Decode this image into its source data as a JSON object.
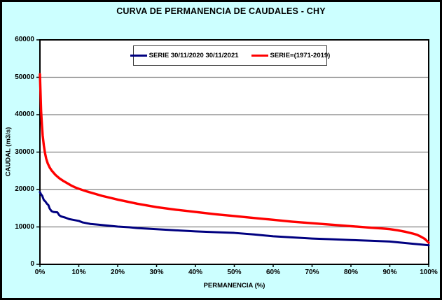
{
  "window": {
    "title": "CURVA DE PERMANENCIA DE CAUDALES - CHY"
  },
  "chart_data": {
    "type": "line",
    "title": "CURVA DE PERMANENCIA DE CAUDALES - CHY",
    "xlabel": "PERMANENCIA (%)",
    "ylabel": "CAUDAL (m3/s)",
    "xlim": [
      0,
      100
    ],
    "ylim": [
      0,
      60000
    ],
    "grid": "horizontal",
    "legend_position": "top-center-inside",
    "background_color": "#CCFFFF",
    "plot_background": "#FFFFFF",
    "gridline_color": "#808080",
    "axis_color": "#000000",
    "xtick_labels": [
      "0%",
      "10%",
      "20%",
      "30%",
      "40%",
      "50%",
      "60%",
      "70%",
      "80%",
      "90%",
      "100%"
    ],
    "ytick_labels": [
      "0",
      "10000",
      "20000",
      "30000",
      "40000",
      "50000",
      "60000"
    ],
    "series": [
      {
        "name": "SERIE 30/11/2020 30/11/2021",
        "color": "#000080",
        "x": [
          0,
          0.3,
          0.6,
          1,
          1.4,
          1.8,
          2.2,
          2.5,
          3,
          3.5,
          4.5,
          5,
          5.5,
          6.5,
          7.5,
          8.5,
          10,
          11,
          13,
          15,
          17,
          20,
          23,
          25,
          30,
          35,
          40,
          45,
          50,
          55,
          60,
          65,
          70,
          75,
          80,
          85,
          90,
          93,
          96,
          98,
          100
        ],
        "y": [
          19300,
          18700,
          18300,
          17200,
          16800,
          16200,
          15800,
          14900,
          14200,
          14000,
          13900,
          13100,
          12800,
          12500,
          12100,
          11900,
          11600,
          11200,
          10800,
          10600,
          10400,
          10100,
          9900,
          9700,
          9400,
          9100,
          8800,
          8600,
          8400,
          8000,
          7500,
          7200,
          6900,
          6700,
          6500,
          6300,
          6100,
          5800,
          5500,
          5300,
          5100
        ]
      },
      {
        "name": "SERIE=(1971-2019)",
        "color": "#FF0000",
        "x": [
          0,
          0.15,
          0.3,
          0.5,
          0.7,
          1,
          1.3,
          1.6,
          2,
          2.5,
          3,
          4,
          5,
          6,
          7,
          8,
          9,
          10,
          12,
          14,
          16,
          18,
          20,
          25,
          30,
          35,
          40,
          45,
          50,
          55,
          60,
          65,
          70,
          75,
          80,
          85,
          88,
          90,
          92,
          94,
          96,
          97,
          98,
          99,
          99.5,
          100
        ],
        "y": [
          50800,
          46000,
          41000,
          37500,
          34500,
          31800,
          29800,
          28300,
          27000,
          25900,
          25100,
          23900,
          23000,
          22300,
          21700,
          21100,
          20600,
          20200,
          19500,
          18900,
          18300,
          17800,
          17300,
          16200,
          15300,
          14600,
          14000,
          13400,
          12900,
          12400,
          11900,
          11400,
          11000,
          10600,
          10200,
          9800,
          9600,
          9400,
          9100,
          8700,
          8200,
          7900,
          7400,
          6800,
          6300,
          5800
        ]
      }
    ]
  }
}
